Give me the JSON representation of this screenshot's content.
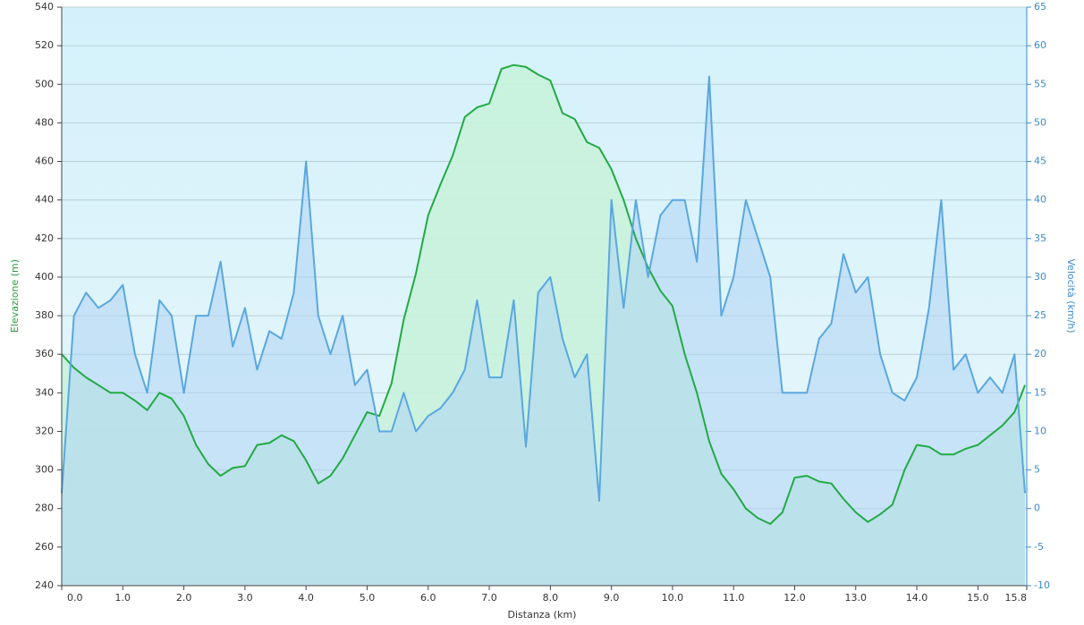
{
  "chart_data": {
    "type": "area",
    "xlabel": "Distanza  (km)",
    "ylabel": "Elevazione (m)",
    "y2label": "Velocità (km/h)",
    "x": [
      0,
      0.2,
      0.4,
      0.6,
      0.8,
      1.0,
      1.2,
      1.4,
      1.6,
      1.8,
      2.0,
      2.2,
      2.4,
      2.6,
      2.8,
      3.0,
      3.2,
      3.4,
      3.6,
      3.8,
      4.0,
      4.2,
      4.4,
      4.6,
      4.8,
      5.0,
      5.2,
      5.4,
      5.6,
      5.8,
      6.0,
      6.2,
      6.4,
      6.6,
      6.8,
      7.0,
      7.2,
      7.4,
      7.6,
      7.8,
      8.0,
      8.2,
      8.4,
      8.6,
      8.8,
      9.0,
      9.2,
      9.4,
      9.6,
      9.8,
      10.0,
      10.2,
      10.4,
      10.6,
      10.8,
      11.0,
      11.2,
      11.4,
      11.6,
      11.8,
      12.0,
      12.2,
      12.4,
      12.6,
      12.8,
      13.0,
      13.2,
      13.4,
      13.6,
      13.8,
      14.0,
      14.2,
      14.4,
      14.6,
      14.8,
      15.0,
      15.2,
      15.4,
      15.6,
      15.77
    ],
    "series": [
      {
        "color": "#22aa44",
        "fill": "#c8f2dc",
        "axis": "y",
        "values": [
          360,
          353,
          348,
          344,
          340,
          340,
          336,
          331,
          340,
          337,
          328,
          313,
          303,
          297,
          301,
          302,
          313,
          314,
          318,
          315,
          305,
          293,
          297,
          306,
          318,
          330,
          328,
          345,
          378,
          402,
          432,
          448,
          463,
          483,
          488,
          490,
          508,
          510,
          509,
          505,
          502,
          485,
          482,
          470,
          467,
          456,
          440,
          420,
          405,
          393,
          385,
          360,
          340,
          315,
          298,
          290,
          280,
          275,
          272,
          278,
          296,
          297,
          294,
          293,
          285,
          278,
          273,
          277,
          282,
          300,
          313,
          312,
          308,
          308,
          311,
          313,
          318,
          323,
          330,
          344
        ]
      },
      {
        "color": "#5aa7e0",
        "fill": "#aed4f4",
        "axis": "y2",
        "values": [
          2,
          25,
          28,
          26,
          27,
          29,
          20,
          15,
          27,
          25,
          15,
          25,
          25,
          32,
          21,
          26,
          18,
          23,
          22,
          28,
          45,
          25,
          20,
          25,
          16,
          18,
          10,
          10,
          15,
          10,
          12,
          13,
          15,
          18,
          27,
          17,
          17,
          27,
          8,
          28,
          30,
          22,
          17,
          20,
          1,
          40,
          26,
          40,
          30,
          38,
          40,
          40,
          32,
          56,
          25,
          30,
          40,
          35,
          30,
          15,
          15,
          15,
          22,
          24,
          33,
          28,
          30,
          20,
          15,
          14,
          17,
          26,
          40,
          18,
          20,
          15,
          17,
          15,
          20,
          2
        ]
      }
    ],
    "xlim": [
      0,
      15.8
    ],
    "xticks": [
      {
        "value": 0,
        "label": "0.0"
      },
      {
        "value": 1,
        "label": "1.0"
      },
      {
        "value": 2,
        "label": "2.0"
      },
      {
        "value": 3,
        "label": "3.0"
      },
      {
        "value": 4,
        "label": "4.0"
      },
      {
        "value": 5,
        "label": "5.0"
      },
      {
        "value": 6,
        "label": "6.0"
      },
      {
        "value": 7,
        "label": "7.0"
      },
      {
        "value": 8,
        "label": "8.0"
      },
      {
        "value": 9,
        "label": "9.0"
      },
      {
        "value": 10,
        "label": "10.0"
      },
      {
        "value": 11,
        "label": "11.0"
      },
      {
        "value": 12,
        "label": "12.0"
      },
      {
        "value": 13,
        "label": "13.0"
      },
      {
        "value": 14,
        "label": "14.0"
      },
      {
        "value": 15,
        "label": "15.0"
      },
      15.8
    ],
    "ylim": [
      240,
      540
    ],
    "yticks": [
      240,
      260,
      280,
      300,
      320,
      340,
      360,
      380,
      400,
      420,
      440,
      460,
      480,
      500,
      520,
      540
    ],
    "y2lim": [
      -10,
      65
    ],
    "y2ticks": [
      -10,
      -5,
      0,
      5,
      10,
      15,
      20,
      25,
      30,
      35,
      40,
      45,
      50,
      55,
      60,
      65
    ],
    "grid": true
  }
}
